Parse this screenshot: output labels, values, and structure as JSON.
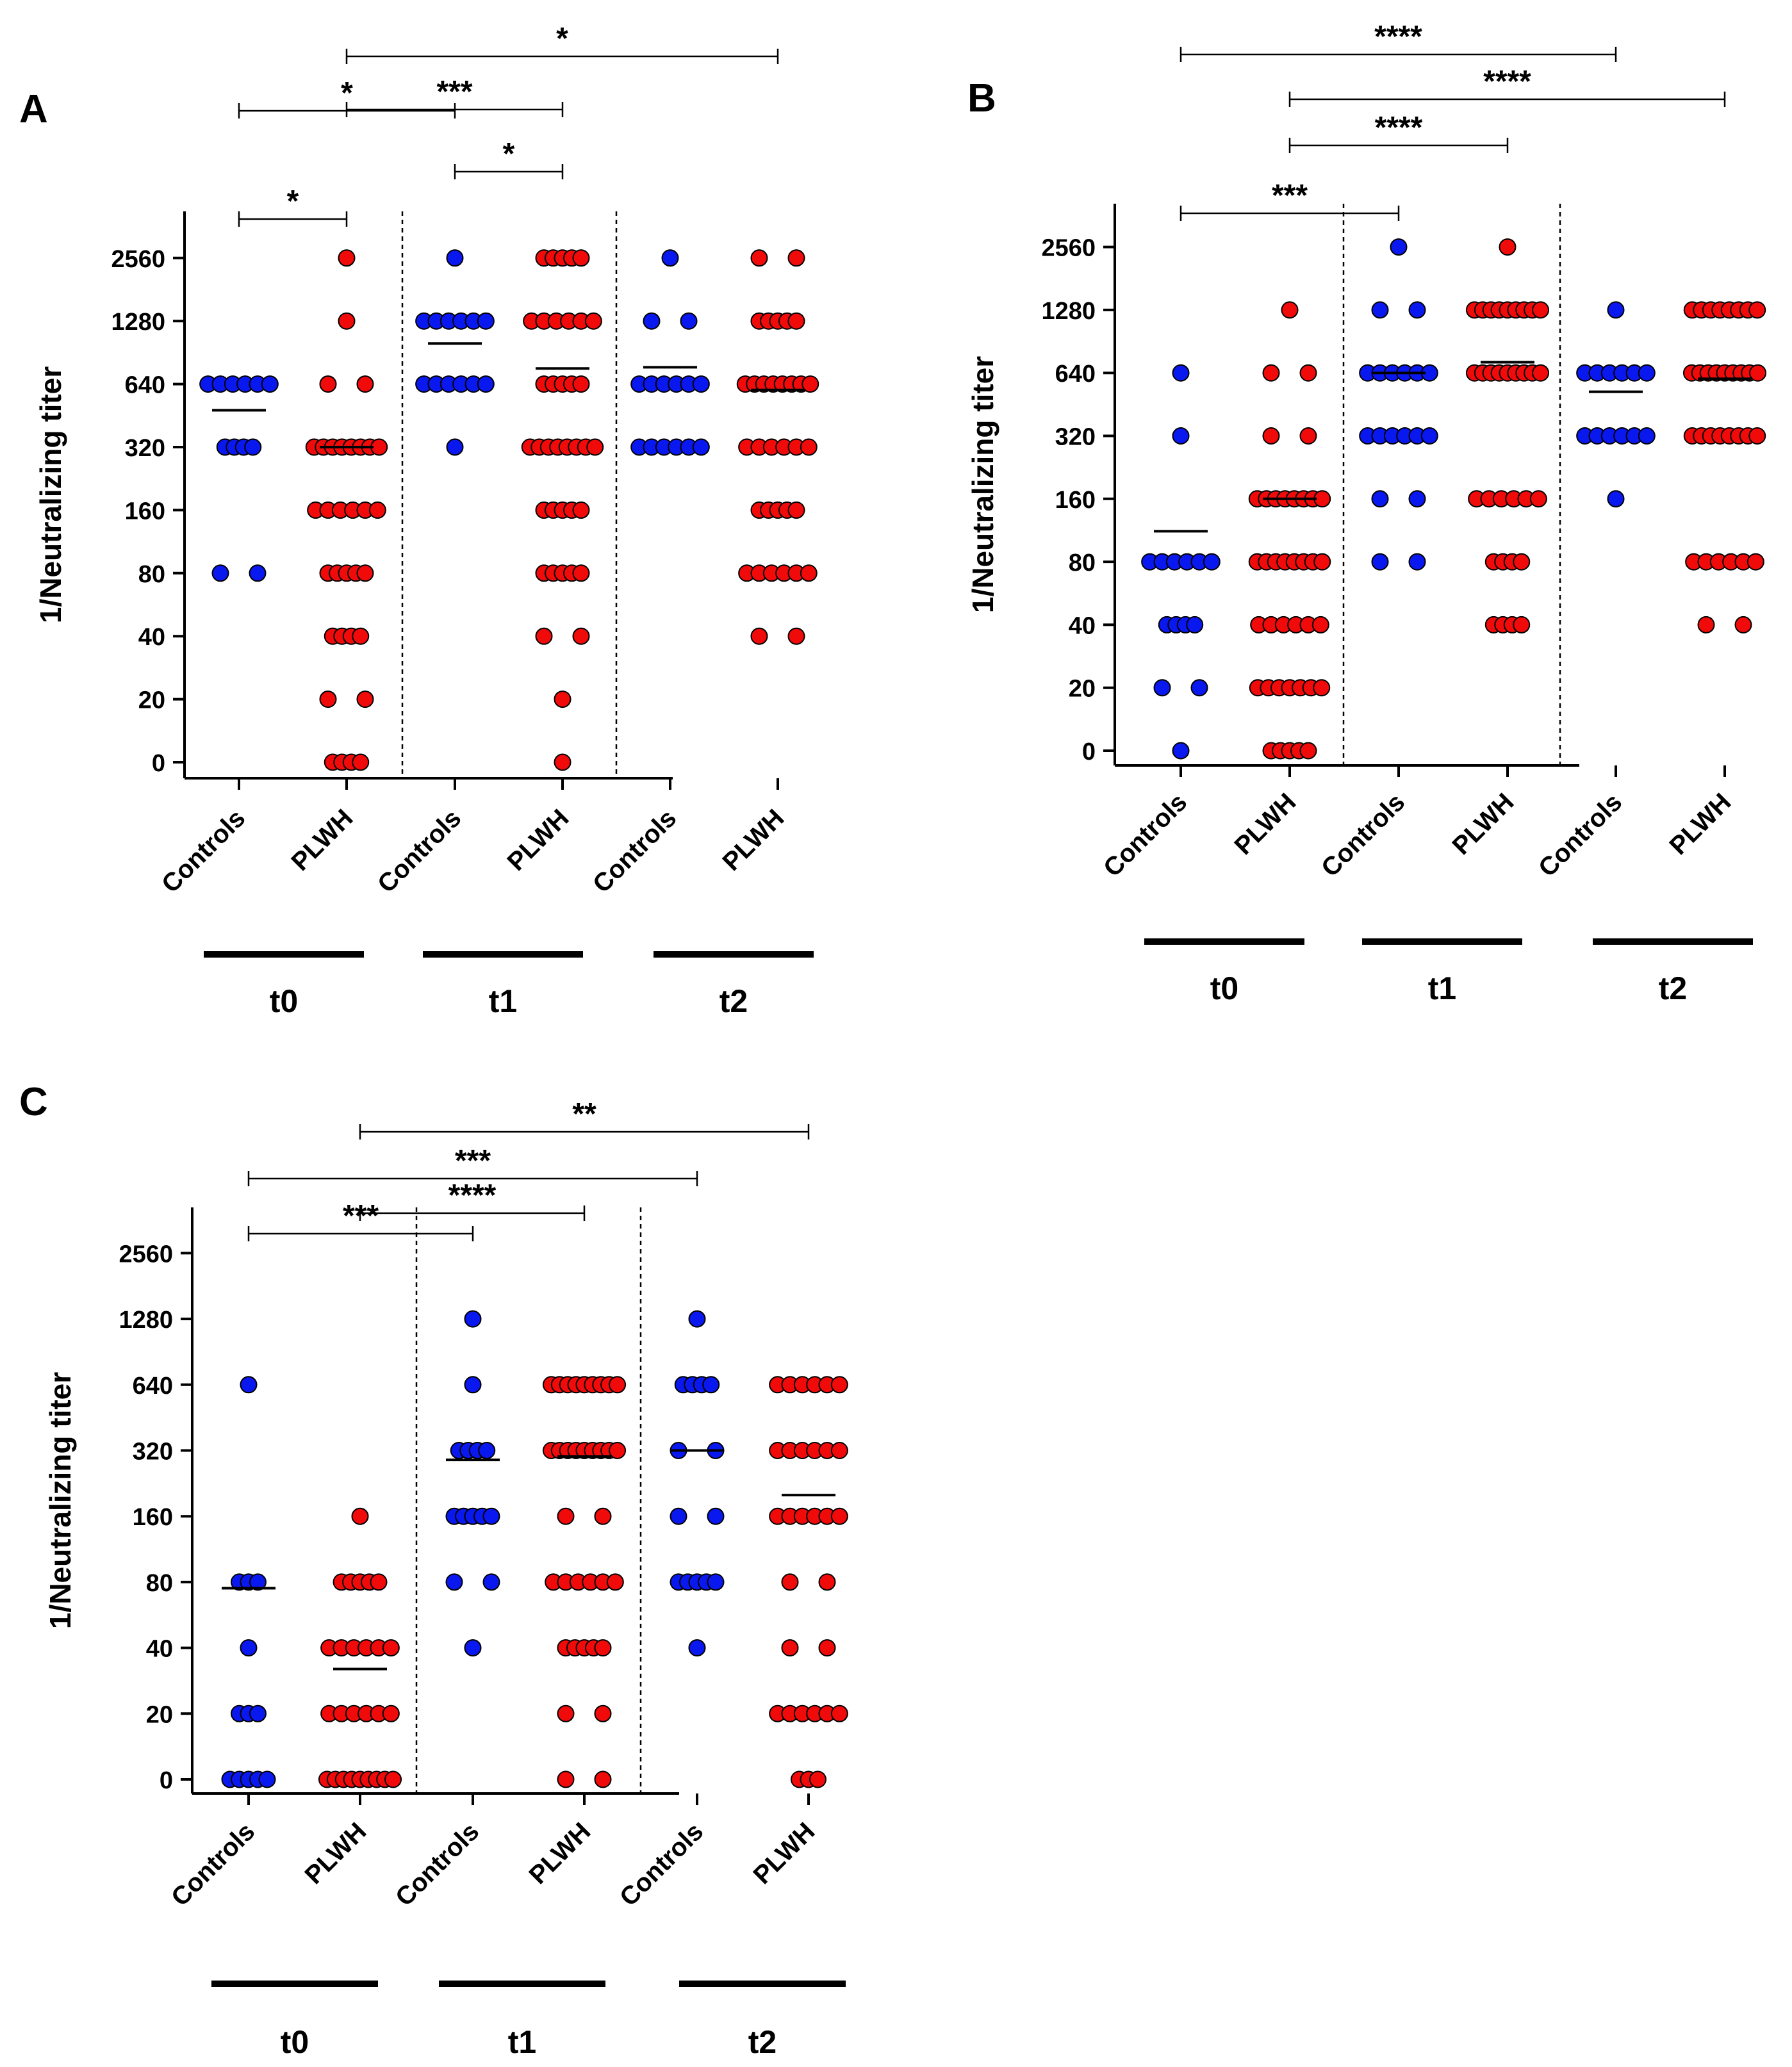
{
  "colors": {
    "controls": "#0a18f0",
    "plwh": "#f00a0a",
    "axis": "#000000"
  },
  "chart_data": [
    {
      "panel": "A",
      "type": "scatter",
      "ylabel": "1/Neutralizing titer",
      "yticks": [
        "0",
        "20",
        "40",
        "80",
        "160",
        "320",
        "640",
        "1280",
        "2560"
      ],
      "groups": [
        {
          "label": "Controls",
          "time": "t0",
          "color": "controls",
          "median": 480,
          "points": {
            "640": 6,
            "320": 4,
            "80": 2
          }
        },
        {
          "label": "PLWH",
          "time": "t0",
          "color": "plwh",
          "median": 320,
          "points": {
            "2560": 1,
            "1280": 1,
            "640": 2,
            "320": 8,
            "160": 6,
            "80": 5,
            "40": 4,
            "20": 2,
            "0": 4
          }
        },
        {
          "label": "Controls",
          "time": "t1",
          "color": "controls",
          "median": 1000,
          "points": {
            "2560": 1,
            "1280": 6,
            "640": 6,
            "320": 1
          }
        },
        {
          "label": "PLWH",
          "time": "t1",
          "color": "plwh",
          "median": 760,
          "points": {
            "2560": 5,
            "1280": 6,
            "640": 5,
            "320": 8,
            "160": 5,
            "80": 5,
            "40": 2,
            "20": 1,
            "0": 1
          }
        },
        {
          "label": "Controls",
          "time": "t2",
          "color": "controls",
          "median": 770,
          "points": {
            "2560": 1,
            "1280": 2,
            "640": 6,
            "320": 6
          }
        },
        {
          "label": "PLWH",
          "time": "t2",
          "color": "plwh",
          "median": 600,
          "points": {
            "2560": 2,
            "1280": 5,
            "640": 8,
            "320": 6,
            "160": 5,
            "80": 6,
            "40": 2
          }
        }
      ],
      "time_labels": [
        "t0",
        "t1",
        "t2"
      ],
      "brackets": [
        {
          "from": 0,
          "to": 1,
          "label": "*"
        },
        {
          "from": 2,
          "to": 3,
          "label": "*"
        },
        {
          "from": 1,
          "to": 3,
          "label": "***"
        },
        {
          "from": 0,
          "to": 2,
          "label": "*"
        },
        {
          "from": 1,
          "to": 5,
          "label": "*"
        }
      ]
    },
    {
      "panel": "B",
      "type": "scatter",
      "ylabel": "1/Neutralizing titer",
      "yticks": [
        "0",
        "20",
        "40",
        "80",
        "160",
        "320",
        "640",
        "1280",
        "2560"
      ],
      "groups": [
        {
          "label": "Controls",
          "time": "t0",
          "color": "controls",
          "median": 112,
          "points": {
            "640": 1,
            "320": 1,
            "80": 6,
            "40": 4,
            "20": 2,
            "0": 1
          }
        },
        {
          "label": "PLWH",
          "time": "t0",
          "color": "plwh",
          "median": 160,
          "points": {
            "1280": 1,
            "640": 2,
            "320": 2,
            "160": 8,
            "80": 8,
            "40": 6,
            "20": 7,
            "0": 5
          }
        },
        {
          "label": "Controls",
          "time": "t1",
          "color": "controls",
          "median": 640,
          "points": {
            "2560": 1,
            "1280": 2,
            "640": 6,
            "320": 6,
            "160": 2,
            "80": 2
          }
        },
        {
          "label": "PLWH",
          "time": "t1",
          "color": "plwh",
          "median": 720,
          "points": {
            "2560": 1,
            "1280": 9,
            "640": 9,
            "160": 6,
            "80": 4,
            "40": 4
          }
        },
        {
          "label": "Controls",
          "time": "t2",
          "color": "controls",
          "median": 520,
          "points": {
            "1280": 1,
            "640": 6,
            "320": 6,
            "160": 1
          }
        },
        {
          "label": "PLWH",
          "time": "t2",
          "color": "plwh",
          "median": 600,
          "points": {
            "1280": 8,
            "640": 9,
            "320": 8,
            "80": 6,
            "40": 2
          }
        }
      ],
      "time_labels": [
        "t0",
        "t1",
        "t2"
      ],
      "brackets": [
        {
          "from": 0,
          "to": 2,
          "label": "***"
        },
        {
          "from": 1,
          "to": 3,
          "label": "****"
        },
        {
          "from": 1,
          "to": 5,
          "label": "****"
        },
        {
          "from": 0,
          "to": 4,
          "label": "****"
        }
      ]
    },
    {
      "panel": "C",
      "type": "scatter",
      "ylabel": "1/Neutralizing titer",
      "yticks": [
        "0",
        "20",
        "40",
        "80",
        "160",
        "320",
        "640",
        "1280",
        "2560"
      ],
      "groups": [
        {
          "label": "Controls",
          "time": "t0",
          "color": "controls",
          "median": 75,
          "points": {
            "640": 1,
            "80": 3,
            "40": 1,
            "20": 3,
            "0": 5
          }
        },
        {
          "label": "PLWH",
          "time": "t0",
          "color": "plwh",
          "median": 32,
          "points": {
            "160": 1,
            "80": 5,
            "40": 6,
            "20": 6,
            "0": 9
          }
        },
        {
          "label": "Controls",
          "time": "t1",
          "color": "controls",
          "median": 290,
          "points": {
            "1280": 1,
            "640": 1,
            "320": 4,
            "160": 5,
            "80": 2,
            "40": 1
          }
        },
        {
          "label": "PLWH",
          "time": "t1",
          "color": "plwh",
          "median": 300,
          "points": {
            "640": 9,
            "320": 9,
            "160": 2,
            "80": 6,
            "40": 5,
            "20": 2,
            "0": 2
          }
        },
        {
          "label": "Controls",
          "time": "t2",
          "color": "controls",
          "median": 320,
          "points": {
            "1280": 1,
            "640": 4,
            "320": 2,
            "160": 2,
            "80": 5,
            "40": 1
          }
        },
        {
          "label": "PLWH",
          "time": "t2",
          "color": "plwh",
          "median": 200,
          "points": {
            "640": 6,
            "320": 6,
            "160": 6,
            "80": 2,
            "40": 2,
            "20": 6,
            "0": 3
          }
        }
      ],
      "time_labels": [
        "t0",
        "t1",
        "t2"
      ],
      "brackets": [
        {
          "from": 0,
          "to": 2,
          "label": "***"
        },
        {
          "from": 1,
          "to": 3,
          "label": "****"
        },
        {
          "from": 0,
          "to": 4,
          "label": "***"
        },
        {
          "from": 1,
          "to": 5,
          "label": "**"
        }
      ]
    }
  ]
}
